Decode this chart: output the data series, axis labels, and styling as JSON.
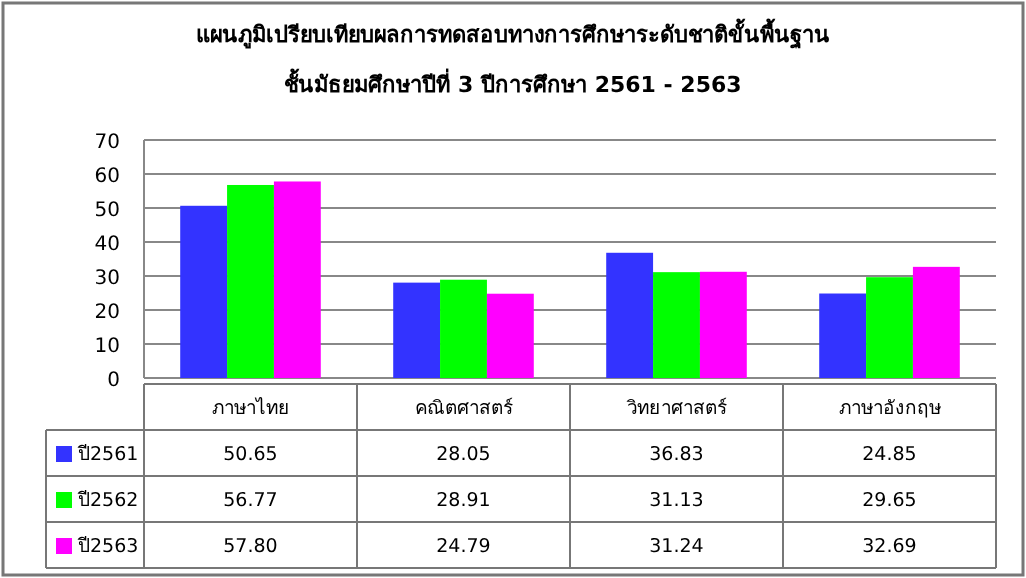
{
  "chart_data": {
    "type": "bar",
    "title": "แผนภูมิเปรียบเทียบผลการทดสอบทางการศึกษาระดับชาติขั้นพื้นฐาน",
    "subtitle": "ชั้นมัธยมศึกษาปีที่  3 ปีการศึกษา  2561 - 2563",
    "categories": [
      "ภาษาไทย",
      "คณิตศาสตร์",
      "วิทยาศาสตร์",
      "ภาษาอังกฤษ"
    ],
    "series": [
      {
        "name": "ปี2561",
        "color": "#3333ff",
        "values": [
          50.65,
          28.05,
          36.83,
          24.85
        ],
        "value_labels": [
          "50.65",
          "28.05",
          "36.83",
          "24.85"
        ]
      },
      {
        "name": "ปี2562",
        "color": "#00ff00",
        "values": [
          56.77,
          28.91,
          31.13,
          29.65
        ],
        "value_labels": [
          "56.77",
          "28.91",
          "31.13",
          "29.65"
        ]
      },
      {
        "name": "ปี2563",
        "color": "#ff00ff",
        "values": [
          57.8,
          24.79,
          31.24,
          32.69
        ],
        "value_labels": [
          "57.80",
          "24.79",
          "31.24",
          "32.69"
        ]
      }
    ],
    "ylim": [
      0,
      70
    ],
    "yticks": [
      0,
      10,
      20,
      30,
      40,
      50,
      60,
      70
    ],
    "grid": "y",
    "legend": "bottom left"
  }
}
